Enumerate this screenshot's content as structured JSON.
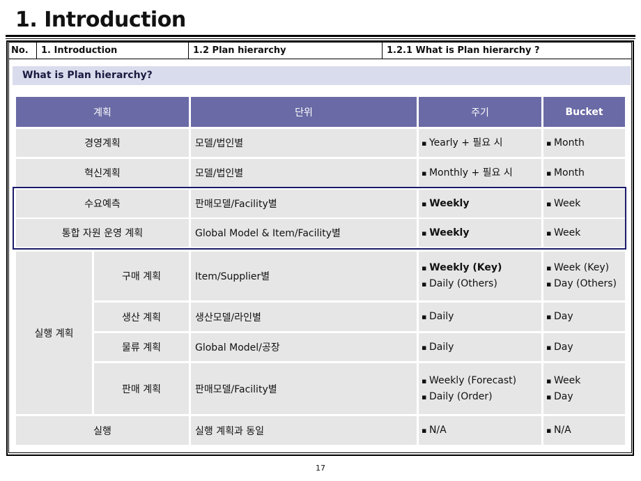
{
  "page": {
    "title": "1. Introduction",
    "page_number": "17"
  },
  "header": {
    "no_label": "No.",
    "section": "1. Introduction",
    "subsection": "1.2 Plan hierarchy",
    "topic": "1.2.1 What is Plan hierarchy ?"
  },
  "section_title": "What is Plan hierarchy?",
  "table": {
    "columns": [
      "계획",
      "단위",
      "주기",
      "Bucket"
    ],
    "rows": [
      {
        "plan": "경영계획",
        "unit": "모델/법인별",
        "cycle": [
          "Yearly + 필요 시"
        ],
        "bucket": [
          "Month"
        ]
      },
      {
        "plan": "혁신계획",
        "unit": "모델/법인별",
        "cycle": [
          "Monthly  + 필요 시"
        ],
        "bucket": [
          "Month"
        ]
      },
      {
        "plan": "수요예측",
        "unit": "판매모델/Facility별",
        "cycle": [
          "Weekly"
        ],
        "bucket": [
          "Week"
        ]
      },
      {
        "plan": "통합 자원 운영 계획",
        "unit": "Global Model & Item/Facility별",
        "cycle": [
          "Weekly"
        ],
        "bucket": [
          "Week"
        ]
      },
      {
        "group": "실행 계획",
        "plan": "구매 계획",
        "unit": "Item/Supplier별",
        "cycle": [
          "Weekly (Key)",
          "Daily (Others)"
        ],
        "bucket": [
          "Week (Key)",
          "Day (Others)"
        ]
      },
      {
        "plan": "생산 계획",
        "unit": "생산모델/라인별",
        "cycle": [
          "Daily"
        ],
        "bucket": [
          "Day"
        ]
      },
      {
        "plan": "물류 계획",
        "unit": "Global Model/공장",
        "cycle": [
          "Daily"
        ],
        "bucket": [
          "Day"
        ]
      },
      {
        "plan": "판매 계획",
        "unit": "판매모델/Facility별",
        "cycle": [
          "Weekly (Forecast)",
          "Daily (Order)"
        ],
        "bucket": [
          "Week",
          "Day"
        ]
      },
      {
        "plan": "실행",
        "unit": "실행 계획과 동일",
        "cycle": [
          "N/A"
        ],
        "bucket": [
          "N/A"
        ]
      }
    ]
  },
  "colors": {
    "header_fill": "#6a6aa6",
    "cell_fill": "#e6e6e6",
    "section_fill": "#d9dcec",
    "highlight_border": "#1c1c6a"
  }
}
